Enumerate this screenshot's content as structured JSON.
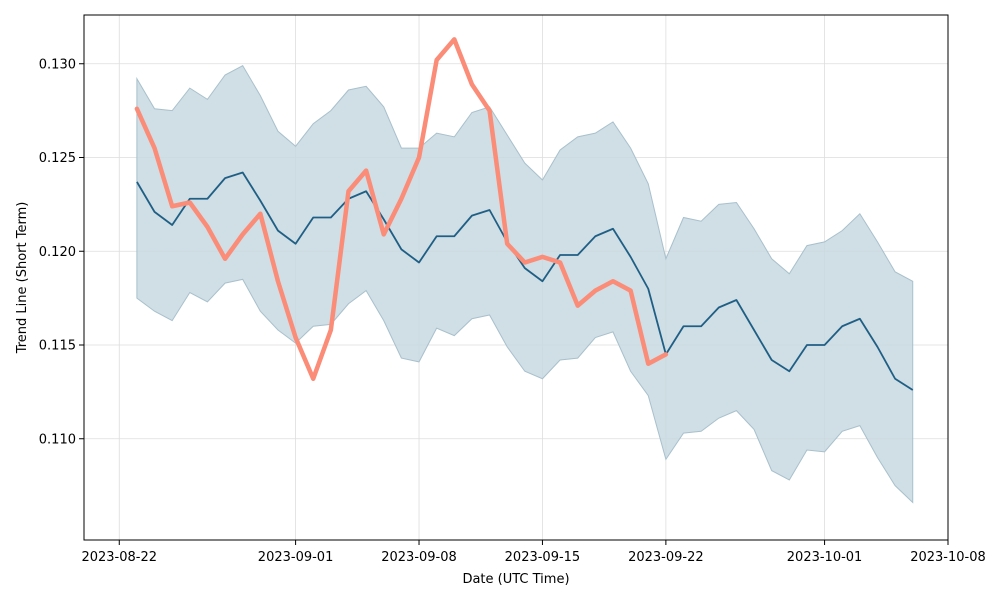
{
  "chart_data": {
    "type": "line",
    "title": "",
    "xlabel": "Date (UTC Time)",
    "ylabel": "Trend Line (Short Term)",
    "xlim": [
      "2023-08-20",
      "2023-10-08"
    ],
    "ylim": [
      0.1046,
      0.1326
    ],
    "grid": true,
    "x_ticks": [
      "2023-08-22",
      "2023-09-01",
      "2023-09-08",
      "2023-09-15",
      "2023-09-22",
      "2023-10-01",
      "2023-10-08"
    ],
    "y_ticks": [
      "0.110",
      "0.115",
      "0.120",
      "0.125",
      "0.130"
    ],
    "colors": {
      "actual": "#fa8c78",
      "forecast": "#1f5f85",
      "band_fill": "#c8d8e0",
      "band_edge": "#a8c0cc",
      "grid": "#dddddd"
    },
    "actual": {
      "x": [
        "2023-08-23",
        "2023-08-24",
        "2023-08-25",
        "2023-08-26",
        "2023-08-27",
        "2023-08-28",
        "2023-08-29",
        "2023-08-30",
        "2023-08-31",
        "2023-09-01",
        "2023-09-02",
        "2023-09-03",
        "2023-09-04",
        "2023-09-05",
        "2023-09-06",
        "2023-09-07",
        "2023-09-08",
        "2023-09-09",
        "2023-09-10",
        "2023-09-11",
        "2023-09-12",
        "2023-09-13",
        "2023-09-14",
        "2023-09-15",
        "2023-09-16",
        "2023-09-17",
        "2023-09-18",
        "2023-09-19",
        "2023-09-20",
        "2023-09-21",
        "2023-09-22"
      ],
      "y": [
        0.1276,
        0.1255,
        0.1224,
        0.1226,
        0.1213,
        0.1196,
        0.1209,
        0.122,
        0.1184,
        0.1154,
        0.1132,
        0.1158,
        0.1232,
        0.1243,
        0.1209,
        0.1228,
        0.125,
        0.1302,
        0.1313,
        0.1289,
        0.1275,
        0.1204,
        0.1194,
        0.1197,
        0.1194,
        0.1171,
        0.1179,
        0.1184,
        0.1179,
        0.114,
        0.1145
      ]
    },
    "forecast": {
      "x": [
        "2023-08-23",
        "2023-08-24",
        "2023-08-25",
        "2023-08-26",
        "2023-08-27",
        "2023-08-28",
        "2023-08-29",
        "2023-08-30",
        "2023-08-31",
        "2023-09-01",
        "2023-09-02",
        "2023-09-03",
        "2023-09-04",
        "2023-09-05",
        "2023-09-06",
        "2023-09-07",
        "2023-09-08",
        "2023-09-09",
        "2023-09-10",
        "2023-09-11",
        "2023-09-12",
        "2023-09-13",
        "2023-09-14",
        "2023-09-15",
        "2023-09-16",
        "2023-09-17",
        "2023-09-18",
        "2023-09-19",
        "2023-09-20",
        "2023-09-21",
        "2023-09-22",
        "2023-09-23",
        "2023-09-24",
        "2023-09-25",
        "2023-09-26",
        "2023-09-27",
        "2023-09-28",
        "2023-09-29",
        "2023-09-30",
        "2023-10-01",
        "2023-10-02",
        "2023-10-03",
        "2023-10-04",
        "2023-10-05",
        "2023-10-06"
      ],
      "y": [
        0.1237,
        0.1221,
        0.1214,
        0.1228,
        0.1228,
        0.1239,
        0.1242,
        0.1227,
        0.1211,
        0.1204,
        0.1218,
        0.1218,
        0.1228,
        0.1232,
        0.1217,
        0.1201,
        0.1194,
        0.1208,
        0.1208,
        0.1219,
        0.1222,
        0.1205,
        0.1191,
        0.1184,
        0.1198,
        0.1198,
        0.1208,
        0.1212,
        0.1197,
        0.118,
        0.1145,
        0.116,
        0.116,
        0.117,
        0.1174,
        0.1158,
        0.1142,
        0.1136,
        0.115,
        0.115,
        0.116,
        0.1164,
        0.1149,
        0.1132,
        0.1126
      ],
      "upper": [
        0.1292,
        0.1276,
        0.1275,
        0.1287,
        0.1281,
        0.1294,
        0.1299,
        0.1283,
        0.1264,
        0.1256,
        0.1268,
        0.1275,
        0.1286,
        0.1288,
        0.1277,
        0.1255,
        0.1255,
        0.1263,
        0.1261,
        0.1274,
        0.1277,
        0.1262,
        0.1247,
        0.1238,
        0.1254,
        0.1261,
        0.1263,
        0.1269,
        0.1255,
        0.1236,
        0.1196,
        0.1218,
        0.1216,
        0.1225,
        0.1226,
        0.1212,
        0.1196,
        0.1188,
        0.1203,
        0.1205,
        0.1211,
        0.122,
        0.1205,
        0.1189,
        0.1184
      ],
      "lower": [
        0.1175,
        0.1168,
        0.1163,
        0.1178,
        0.1173,
        0.1183,
        0.1185,
        0.1168,
        0.1158,
        0.1151,
        0.116,
        0.1161,
        0.1172,
        0.1179,
        0.1163,
        0.1143,
        0.1141,
        0.1159,
        0.1155,
        0.1164,
        0.1166,
        0.1149,
        0.1136,
        0.1132,
        0.1142,
        0.1143,
        0.1154,
        0.1157,
        0.1136,
        0.1123,
        0.1089,
        0.1103,
        0.1104,
        0.1111,
        0.1115,
        0.1105,
        0.1083,
        0.1078,
        0.1094,
        0.1093,
        0.1104,
        0.1107,
        0.109,
        0.1075,
        0.1066
      ]
    }
  }
}
